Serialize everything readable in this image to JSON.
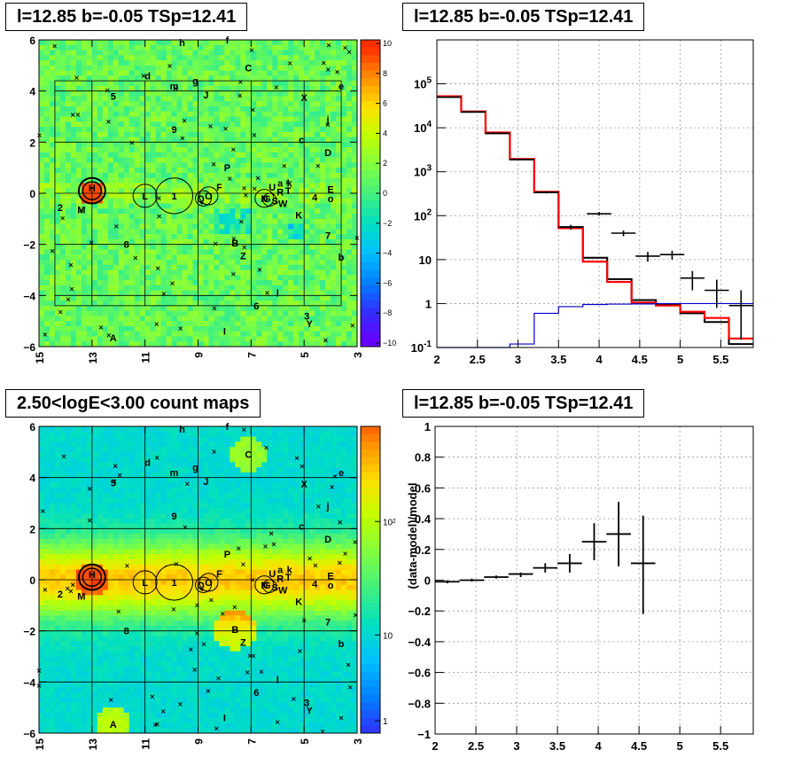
{
  "panels": {
    "tl_title": "l=12.85 b=-0.05 TSp=12.41",
    "tr_title": "l=12.85 b=-0.05 TSp=12.41",
    "bl_title": "2.50<logE<3.00 count maps",
    "br_title": "l=12.85 b=-0.05 TSp=12.41"
  },
  "colors": {
    "data": "#000000",
    "model": "#ff0000",
    "component": "#0000cc",
    "palette": [
      "#6600ff",
      "#3030ff",
      "#0080ff",
      "#00c0ff",
      "#00e0c0",
      "#40f080",
      "#80ff40",
      "#c0ff00",
      "#ffe000",
      "#ff9000",
      "#ff3000"
    ]
  },
  "chart_data": [
    {
      "type": "heatmap",
      "title": "l=12.85 b=-0.05 TSp=12.41",
      "map": "residual significance",
      "xlim": [
        15,
        3
      ],
      "ylim": [
        -6,
        6
      ],
      "xticks": [
        "15",
        "13",
        "11",
        "9",
        "7",
        "5",
        "3"
      ],
      "yticks": [
        "6",
        "4",
        "2",
        "0",
        "−2",
        "−4",
        "−6"
      ],
      "colorbar": {
        "range": [
          -10,
          10
        ],
        "ticks": [
          "10",
          "8",
          "6",
          "4",
          "2",
          "0",
          "−2",
          "−4",
          "−6",
          "−8",
          "−10"
        ]
      },
      "source_labels": [
        {
          "t": "H",
          "l": 13.0,
          "b": 0.2
        },
        {
          "t": "L",
          "l": 11.0,
          "b": -0.1
        },
        {
          "t": "1",
          "l": 9.9,
          "b": -0.1
        },
        {
          "t": "2",
          "l": 14.2,
          "b": -0.55
        },
        {
          "t": "M",
          "l": 13.4,
          "b": -0.65
        },
        {
          "t": "Q",
          "l": 8.9,
          "b": -0.2
        },
        {
          "t": "O",
          "l": 8.6,
          "b": -0.1
        },
        {
          "t": "F",
          "l": 8.2,
          "b": 0.25
        },
        {
          "t": "P",
          "l": 7.9,
          "b": 1.0
        },
        {
          "t": "N",
          "l": 6.5,
          "b": -0.2
        },
        {
          "t": "G",
          "l": 6.4,
          "b": -0.2
        },
        {
          "t": "U",
          "l": 6.2,
          "b": 0.25
        },
        {
          "t": "a",
          "l": 5.9,
          "b": 0.4
        },
        {
          "t": "k",
          "l": 5.55,
          "b": 0.4
        },
        {
          "t": "R",
          "l": 5.9,
          "b": 0.05
        },
        {
          "t": "T",
          "l": 5.6,
          "b": 0.1
        },
        {
          "t": "S",
          "l": 6.1,
          "b": -0.3
        },
        {
          "t": "W",
          "l": 5.8,
          "b": -0.4
        },
        {
          "t": "K",
          "l": 5.2,
          "b": -0.85
        },
        {
          "t": "4",
          "l": 4.6,
          "b": -0.15
        },
        {
          "t": "E",
          "l": 4.0,
          "b": 0.15
        },
        {
          "t": "o",
          "l": 4.0,
          "b": -0.2
        },
        {
          "t": "7",
          "l": 4.1,
          "b": -1.65
        },
        {
          "t": "b",
          "l": 3.6,
          "b": -2.5
        },
        {
          "t": "D",
          "l": 4.1,
          "b": 1.6
        },
        {
          "t": "c",
          "l": 5.1,
          "b": 2.1
        },
        {
          "t": "9",
          "l": 9.9,
          "b": 2.5
        },
        {
          "t": "j",
          "l": 4.1,
          "b": 2.9
        },
        {
          "t": "5",
          "l": 12.2,
          "b": 3.8
        },
        {
          "t": "X",
          "l": 5.0,
          "b": 3.75
        },
        {
          "t": "e",
          "l": 3.6,
          "b": 4.2
        },
        {
          "t": "d",
          "l": 10.9,
          "b": 4.6
        },
        {
          "t": "m",
          "l": 9.9,
          "b": 4.2
        },
        {
          "t": "g",
          "l": 9.1,
          "b": 4.4
        },
        {
          "t": "J",
          "l": 8.7,
          "b": 3.85
        },
        {
          "t": "C",
          "l": 7.1,
          "b": 4.9
        },
        {
          "t": "h",
          "l": 9.6,
          "b": 5.9
        },
        {
          "t": "f",
          "l": 7.9,
          "b": 6.0
        },
        {
          "t": "8",
          "l": 11.7,
          "b": -2.0
        },
        {
          "t": "B",
          "l": 7.6,
          "b": -1.95
        },
        {
          "t": "Z",
          "l": 7.3,
          "b": -2.45
        },
        {
          "t": "l",
          "l": 6.0,
          "b": -3.9
        },
        {
          "t": "6",
          "l": 6.8,
          "b": -4.4
        },
        {
          "t": "3",
          "l": 4.9,
          "b": -4.8
        },
        {
          "t": "Y",
          "l": 4.8,
          "b": -5.1
        },
        {
          "t": "I",
          "l": 8.0,
          "b": -5.4
        },
        {
          "t": "A",
          "l": 12.2,
          "b": -5.65
        }
      ]
    },
    {
      "type": "line",
      "title": "l=12.85 b=-0.05 TSp=12.41",
      "yscale": "log",
      "xlim": [
        2,
        5.9
      ],
      "ylim": [
        0.1,
        1000000
      ],
      "xticks": [
        "2",
        "2.5",
        "3",
        "3.5",
        "4",
        "4.5",
        "5",
        "5.5"
      ],
      "yticks": [
        "10^5",
        "10^4",
        "10^3",
        "10^2",
        "10",
        "1",
        "10^-1"
      ],
      "bin_edges": [
        2,
        2.3,
        2.6,
        2.9,
        3.2,
        3.5,
        3.8,
        4.1,
        4.4,
        4.7,
        5.0,
        5.3,
        5.6,
        5.9
      ],
      "series": [
        {
          "values": [
            50000,
            23000,
            7500,
            1900,
            340,
            55,
            11,
            3.6,
            1.2,
            0.95,
            0.6,
            0.38,
            0.12
          ]
        },
        {
          "values": [
            52000,
            23500,
            7800,
            1950,
            350,
            52,
            9.0,
            3.1,
            1.05,
            0.9,
            0.65,
            0.47,
            0.16
          ]
        },
        {
          "values": [
            0.1,
            0.1,
            0.1,
            0.12,
            0.6,
            0.85,
            0.95,
            0.97,
            0.98,
            1.0,
            1.0,
            1.0,
            1.0
          ]
        }
      ],
      "data_points": [
        {
          "x": 2.15,
          "y": 50000,
          "dx": 0.15,
          "lo": 49000,
          "hi": 51000
        },
        {
          "x": 2.45,
          "y": 23000,
          "dx": 0.15,
          "lo": 22500,
          "hi": 23500
        },
        {
          "x": 2.75,
          "y": 7500,
          "dx": 0.15,
          "lo": 7300,
          "hi": 7700
        },
        {
          "x": 3.05,
          "y": 1900,
          "dx": 0.15,
          "lo": 1850,
          "hi": 1950
        },
        {
          "x": 3.35,
          "y": 340,
          "dx": 0.15,
          "lo": 320,
          "hi": 360
        },
        {
          "x": 3.65,
          "y": 55,
          "dx": 0.15,
          "lo": 48,
          "hi": 62
        },
        {
          "x": 4.0,
          "y": 110,
          "dx": 0.15,
          "lo": 100,
          "hi": 121
        },
        {
          "x": 4.3,
          "y": 40,
          "dx": 0.15,
          "lo": 34,
          "hi": 46
        },
        {
          "x": 4.6,
          "y": 12,
          "dx": 0.15,
          "lo": 9,
          "hi": 15
        },
        {
          "x": 4.9,
          "y": 13,
          "dx": 0.15,
          "lo": 10,
          "hi": 16
        },
        {
          "x": 5.15,
          "y": 3.8,
          "dx": 0.15,
          "lo": 2.0,
          "hi": 5.5
        },
        {
          "x": 5.45,
          "y": 2.0,
          "dx": 0.15,
          "lo": 0.8,
          "hi": 3.5
        },
        {
          "x": 5.75,
          "y": 0.9,
          "dx": 0.15,
          "lo": 0.15,
          "hi": 2.0
        }
      ]
    },
    {
      "type": "heatmap",
      "title": "2.50<logE<3.00 count maps",
      "map": "counts",
      "xlim": [
        15,
        3
      ],
      "ylim": [
        -6,
        6
      ],
      "xticks": [
        "15",
        "13",
        "11",
        "9",
        "7",
        "5",
        "3"
      ],
      "yticks": [
        "6",
        "4",
        "2",
        "0",
        "−2",
        "−4",
        "−6"
      ],
      "colorbar": {
        "scale": "log",
        "ticks": [
          "10²",
          "10",
          "1"
        ]
      }
    },
    {
      "type": "scatter",
      "title": "l=12.85 b=-0.05 TSp=12.41",
      "ylabel": "(data-model)/model",
      "xlim": [
        2,
        5.9
      ],
      "ylim": [
        -1,
        1
      ],
      "xticks": [
        "2",
        "2.5",
        "3",
        "3.5",
        "4",
        "4.5",
        "5",
        "5.5"
      ],
      "yticks": [
        "1",
        "0.8",
        "0.6",
        "0.4",
        "0.2",
        "0",
        "−0.2",
        "−0.4",
        "−0.6",
        "−0.8",
        "−1"
      ],
      "points": [
        {
          "x": 2.15,
          "y": -0.01,
          "dx": 0.15,
          "lo": -0.02,
          "hi": 0.0
        },
        {
          "x": 2.45,
          "y": 0.0,
          "dx": 0.15,
          "lo": -0.01,
          "hi": 0.01
        },
        {
          "x": 2.75,
          "y": 0.02,
          "dx": 0.15,
          "lo": 0.01,
          "hi": 0.03
        },
        {
          "x": 3.05,
          "y": 0.04,
          "dx": 0.15,
          "lo": 0.02,
          "hi": 0.05
        },
        {
          "x": 3.35,
          "y": 0.08,
          "dx": 0.15,
          "lo": 0.05,
          "hi": 0.11
        },
        {
          "x": 3.65,
          "y": 0.11,
          "dx": 0.15,
          "lo": 0.05,
          "hi": 0.17
        },
        {
          "x": 3.95,
          "y": 0.25,
          "dx": 0.15,
          "lo": 0.13,
          "hi": 0.37
        },
        {
          "x": 4.25,
          "y": 0.3,
          "dx": 0.15,
          "lo": 0.09,
          "hi": 0.51
        },
        {
          "x": 4.55,
          "y": 0.11,
          "dx": 0.15,
          "lo": -0.22,
          "hi": 0.42
        }
      ]
    }
  ]
}
